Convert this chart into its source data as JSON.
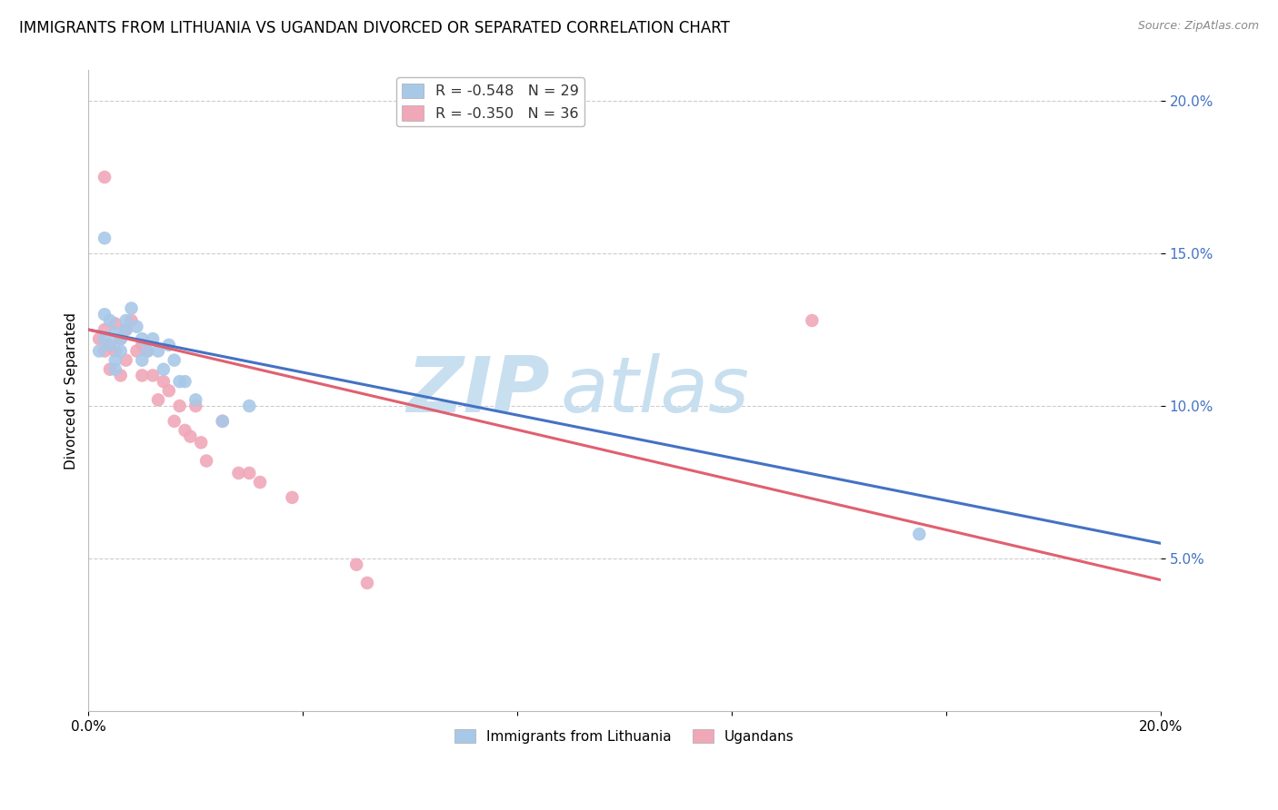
{
  "title": "IMMIGRANTS FROM LITHUANIA VS UGANDAN DIVORCED OR SEPARATED CORRELATION CHART",
  "source": "Source: ZipAtlas.com",
  "ylabel": "Divorced or Separated",
  "xlim": [
    0.0,
    0.2
  ],
  "ylim": [
    0.0,
    0.21
  ],
  "yticks": [
    0.05,
    0.1,
    0.15,
    0.2
  ],
  "ytick_labels": [
    "5.0%",
    "10.0%",
    "15.0%",
    "20.0%"
  ],
  "xtick_labels": [
    "0.0%",
    "",
    "",
    "",
    "",
    "20.0%"
  ],
  "blue_scatter_x": [
    0.002,
    0.003,
    0.003,
    0.004,
    0.004,
    0.005,
    0.005,
    0.005,
    0.006,
    0.006,
    0.007,
    0.007,
    0.008,
    0.009,
    0.01,
    0.01,
    0.011,
    0.012,
    0.013,
    0.014,
    0.015,
    0.016,
    0.017,
    0.018,
    0.02,
    0.025,
    0.03,
    0.155,
    0.003
  ],
  "blue_scatter_y": [
    0.118,
    0.13,
    0.122,
    0.128,
    0.12,
    0.124,
    0.115,
    0.112,
    0.118,
    0.122,
    0.125,
    0.128,
    0.132,
    0.126,
    0.122,
    0.115,
    0.118,
    0.122,
    0.118,
    0.112,
    0.12,
    0.115,
    0.108,
    0.108,
    0.102,
    0.095,
    0.1,
    0.058,
    0.155
  ],
  "pink_scatter_x": [
    0.002,
    0.003,
    0.003,
    0.004,
    0.004,
    0.005,
    0.005,
    0.006,
    0.006,
    0.007,
    0.007,
    0.008,
    0.009,
    0.01,
    0.01,
    0.011,
    0.012,
    0.013,
    0.014,
    0.015,
    0.016,
    0.017,
    0.018,
    0.019,
    0.02,
    0.021,
    0.022,
    0.025,
    0.028,
    0.03,
    0.032,
    0.038,
    0.135,
    0.05,
    0.052,
    0.003
  ],
  "pink_scatter_y": [
    0.122,
    0.118,
    0.125,
    0.12,
    0.112,
    0.127,
    0.118,
    0.122,
    0.11,
    0.125,
    0.115,
    0.128,
    0.118,
    0.12,
    0.11,
    0.118,
    0.11,
    0.102,
    0.108,
    0.105,
    0.095,
    0.1,
    0.092,
    0.09,
    0.1,
    0.088,
    0.082,
    0.095,
    0.078,
    0.078,
    0.075,
    0.07,
    0.128,
    0.048,
    0.042,
    0.175
  ],
  "blue_line_x": [
    0.0,
    0.2
  ],
  "blue_line_y": [
    0.125,
    0.055
  ],
  "pink_line_x": [
    0.0,
    0.2
  ],
  "pink_line_y": [
    0.125,
    0.043
  ],
  "scatter_size": 110,
  "blue_color": "#a8c8e8",
  "pink_color": "#f0a8b8",
  "blue_line_color": "#4472c4",
  "pink_line_color": "#e06070",
  "title_fontsize": 12,
  "axis_label_fontsize": 11,
  "tick_fontsize": 11,
  "watermark_zip": "ZIP",
  "watermark_atlas": "atlas",
  "watermark_color_zip": "#c8dff0",
  "watermark_color_atlas": "#c8dff0",
  "grid_color": "#cccccc",
  "legend_blue_label": "R = -0.548   N = 29",
  "legend_pink_label": "R = -0.350   N = 36",
  "bottom_leg_blue": "Immigrants from Lithuania",
  "bottom_leg_pink": "Ugandans"
}
